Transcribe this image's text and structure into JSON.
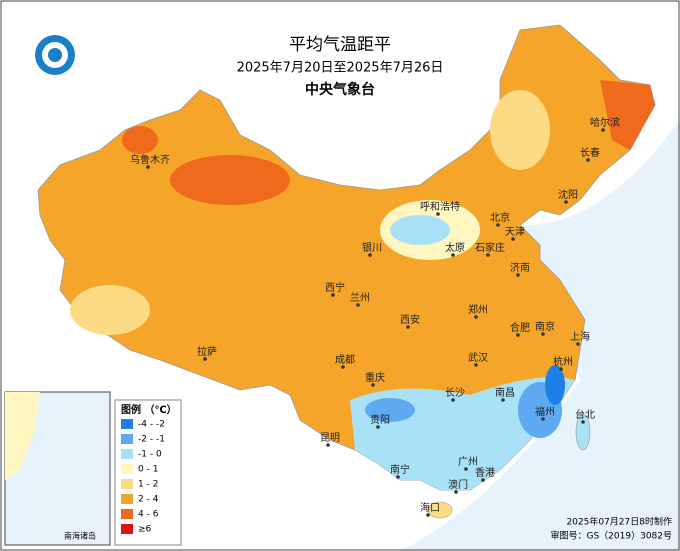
{
  "header": {
    "title": "平均气温距平",
    "date_range": "2025年7月20日至2025年7月26日",
    "agency": "中央气象台"
  },
  "legend": {
    "title": "图例 （℃）",
    "items": [
      {
        "label": "-4 - -2",
        "color": "#1f7fe6"
      },
      {
        "label": "-2 - -1",
        "color": "#5eaaf0"
      },
      {
        "label": "-1 - 0",
        "color": "#a9e2f6"
      },
      {
        "label": "0 - 1",
        "color": "#fff6c2"
      },
      {
        "label": "1 - 2",
        "color": "#fddb84"
      },
      {
        "label": "2 - 4",
        "color": "#f5a52a"
      },
      {
        "label": "4 - 6",
        "color": "#f06a1e"
      },
      {
        "label": "≥6",
        "color": "#dd1212"
      }
    ]
  },
  "cities": [
    "乌鲁木齐",
    "哈尔滨",
    "长春",
    "沈阳",
    "呼和浩特",
    "北京",
    "天津",
    "石家庄",
    "太原",
    "银川",
    "济南",
    "西宁",
    "兰州",
    "郑州",
    "西安",
    "合肥",
    "南京",
    "上海",
    "拉萨",
    "成都",
    "武汉",
    "杭州",
    "重庆",
    "长沙",
    "南昌",
    "台北",
    "福州",
    "贵阳",
    "昆明",
    "南宁",
    "广州",
    "香港",
    "澳门",
    "海口"
  ],
  "inset": {
    "label": "南海诸岛"
  },
  "footer": {
    "line1": "2025年07月27日8时制作",
    "line2": "审图号：GS（2019）3082号"
  }
}
